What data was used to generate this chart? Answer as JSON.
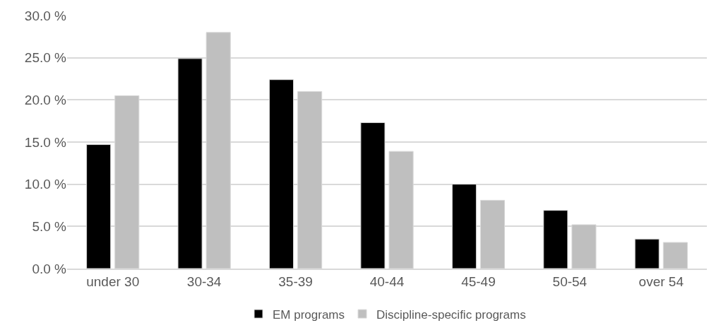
{
  "chart_data": {
    "type": "bar",
    "categories": [
      "under 30",
      "30-34",
      "35-39",
      "40-44",
      "45-49",
      "50-54",
      "over 54"
    ],
    "series": [
      {
        "name": "EM programs",
        "color": "#000000",
        "values": [
          14.7,
          24.9,
          22.4,
          17.3,
          10.0,
          6.9,
          3.5
        ]
      },
      {
        "name": "Discipline-specific programs",
        "color": "#bfbfbf",
        "values": [
          20.5,
          28.0,
          21.0,
          13.9,
          8.1,
          5.2,
          3.1
        ]
      }
    ],
    "ylim": [
      0,
      30
    ],
    "yticks": [
      {
        "value": 0,
        "label": "0.0 %"
      },
      {
        "value": 5,
        "label": "5.0 %"
      },
      {
        "value": 10,
        "label": "10.0 %"
      },
      {
        "value": 15,
        "label": "15.0 %"
      },
      {
        "value": 20,
        "label": "20.0 %"
      },
      {
        "value": 25,
        "label": "25.0 %"
      },
      {
        "value": 30,
        "label": "30.0 %"
      }
    ],
    "grid": "y",
    "legend": "bottom"
  }
}
